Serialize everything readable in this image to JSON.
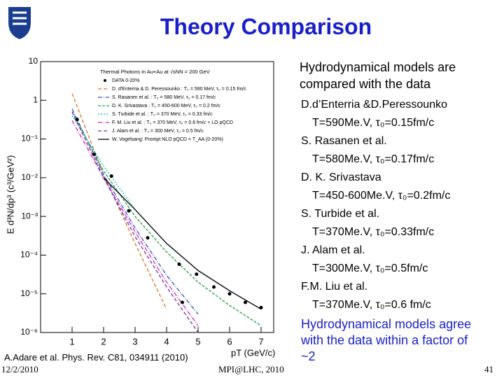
{
  "title": "Theory Comparison",
  "intro": [
    "Hydrodynamical models are",
    "compared with the data"
  ],
  "models": [
    {
      "name": "D.d’Enterria &D.Peressounko",
      "params": "T=590Me.V, τ₀=0.15fm/c"
    },
    {
      "name": "S. Rasanen et al.",
      "params": "T=580Me.V, τ₀=0.17fm/c"
    },
    {
      "name": "D. K. Srivastava",
      "params": "T=450-600Me.V, τ₀=0.2fm/c"
    },
    {
      "name": "S. Turbide et al.",
      "params": "T=370Me.V, τ₀=0.33fm/c"
    },
    {
      "name": "J. Alam et al.",
      "params": "T=300Me.V, τ₀=0.5fm/c"
    },
    {
      "name": "F.M. Liu et al.",
      "params": "T=370Me.V, τ₀=0.6 fm/c"
    }
  ],
  "conclusion": [
    "Hydrodynamical models agree",
    "with the data within a factor of",
    "~2"
  ],
  "reference": "A.Adare et al.   Phys. Rev. C81, 034911 (2010)",
  "footer": {
    "date": "12/2/2010",
    "venue": "MPI@LHC, 2010",
    "page": "41"
  },
  "chart_data": {
    "type": "line",
    "log_y": true,
    "legend_title": "Thermal Photons in Au+Au at √sNN = 200 GeV",
    "x_label": "pT (GeV/c)",
    "y_label": "E d³N/dp³ (c³/GeV²)",
    "xlim": [
      0,
      7.4
    ],
    "xticks": [
      1,
      2,
      3,
      4,
      5,
      6,
      7
    ],
    "ylim": [
      1e-06,
      10
    ],
    "yticks": [
      {
        "value": 10,
        "label": "10"
      },
      {
        "value": 1,
        "label": "1"
      },
      {
        "value": 0.1,
        "label": "10⁻¹"
      },
      {
        "value": 0.01,
        "label": "10⁻²"
      },
      {
        "value": 0.001,
        "label": "10⁻³"
      },
      {
        "value": 0.0001,
        "label": "10⁻⁴"
      },
      {
        "value": 1e-05,
        "label": "10⁻⁵"
      },
      {
        "value": 1e-06,
        "label": "10⁻⁶"
      }
    ],
    "points": {
      "name": "DATA 0-20%",
      "color": "#000000",
      "x": [
        1.16,
        1.7,
        2.25,
        2.8,
        3.4,
        4.4,
        4.5,
        4.95,
        5.5,
        6.0,
        6.5,
        7.0
      ],
      "values": [
        0.32,
        0.04,
        0.011,
        0.0014,
        0.00028,
        5.8e-05,
        6e-06,
        3.2e-05,
        1.5e-05,
        1e-05,
        6e-06,
        4.4e-06
      ]
    },
    "x": [
      1,
      2,
      3,
      4,
      5,
      6,
      7
    ],
    "series": [
      {
        "name": "D. d'Enterria & D. Peressounko : T₀ = 590 MeV, τ₀ = 0.15 fm/c",
        "color": "#e07020",
        "dash": "5,3",
        "values": [
          1.5,
          0.012,
          0.0002,
          4e-06,
          null,
          null,
          null
        ]
      },
      {
        "name": "S. Rasanen et al. : T₀ = 580 MeV, τ₀ = 0.17 fm/c",
        "color": "#3050c0",
        "dash": "6,2,1,2",
        "values": [
          0.6,
          0.012,
          0.0005,
          3e-05,
          3e-06,
          null,
          null
        ]
      },
      {
        "name": "D. K. Srivastava : T₀ = 450-600 MeV, τ₀ = 0.2 fm/c",
        "color": "#20a040",
        "dash": "4,2",
        "values": [
          0.5,
          0.015,
          0.001,
          0.00012,
          2e-05,
          5e-06,
          1.5e-06
        ]
      },
      {
        "name": "S. Turbide et al. : T₀ = 370 MeV, τ₀ = 0.33 fm/c",
        "color": "#20b0c0",
        "dash": "2,2",
        "values": [
          0.4,
          0.02,
          0.0015,
          0.0002,
          4e-05,
          1.2e-05,
          4e-06
        ]
      },
      {
        "name": "F. M. Liu et al. : T₀ = 370 MeV, τ₀ = 0.6 fm/c + LO pQCD",
        "color": "#d020c0",
        "dash": "6,2,1,2",
        "values": [
          0.3,
          0.01,
          0.0004,
          2e-05,
          1.5e-06,
          null,
          null
        ]
      },
      {
        "name": "J. Alam et al. : T₀ = 300 MeV, τ₀ = 0.5 fm/c",
        "color": "#7030a0",
        "dash": "5,3",
        "values": [
          0.5,
          0.01,
          0.0003,
          1.5e-05,
          1e-06,
          null,
          null
        ]
      },
      {
        "name": "W. Vogelsang: Prompt NLO pQCD × T_AA (0-20%)",
        "color": "#000000",
        "dash": "",
        "values": [
          null,
          0.01,
          0.0015,
          0.0002,
          4e-05,
          1.2e-05,
          4e-06
        ]
      }
    ]
  }
}
